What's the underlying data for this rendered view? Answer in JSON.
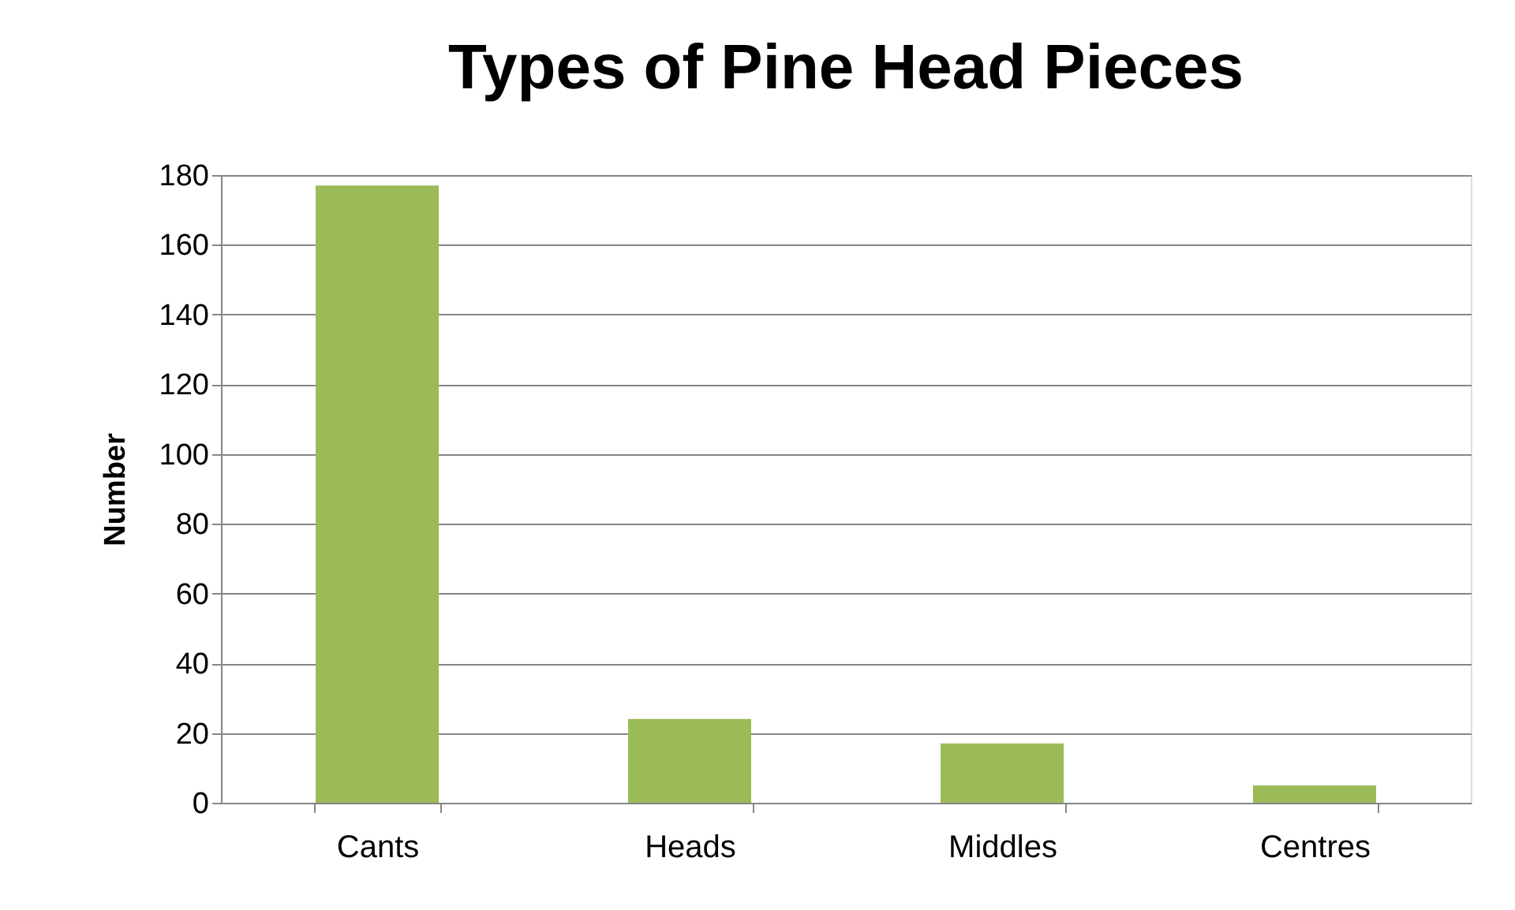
{
  "chart_data": {
    "type": "bar",
    "title": "Types of Pine Head Pieces",
    "ylabel": "Number",
    "categories": [
      "Cants",
      "Heads",
      "Middles",
      "Centres"
    ],
    "values": [
      177,
      24,
      17,
      5
    ],
    "color": "#9bbb59",
    "ylim": [
      0,
      180
    ],
    "yticks": [
      0,
      20,
      40,
      60,
      80,
      100,
      120,
      140,
      160,
      180
    ],
    "grid": "y"
  }
}
